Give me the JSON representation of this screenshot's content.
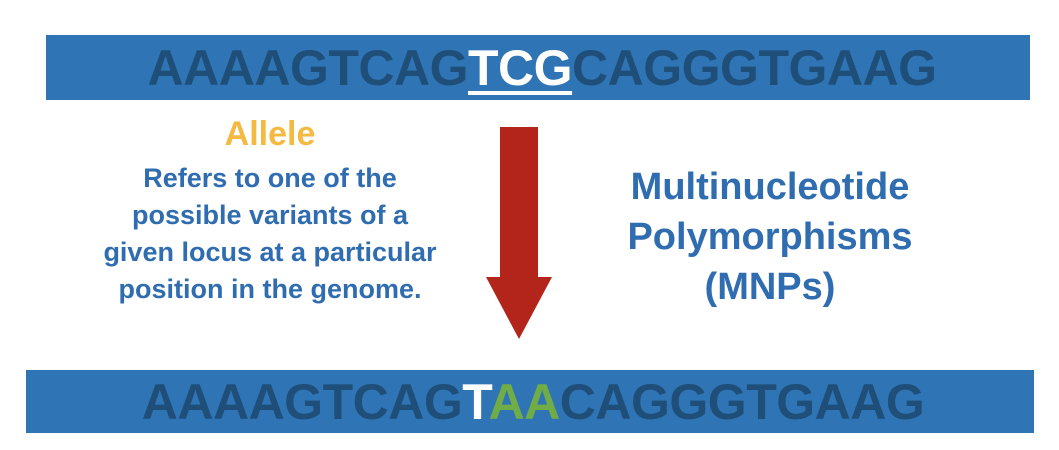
{
  "top_sequence": {
    "prefix": "AAAAGTCAG",
    "highlight": "TCG",
    "suffix": "CAGGGTGAAG"
  },
  "bottom_sequence": {
    "prefix": "AAAAGTCAG",
    "highlight_white": "T",
    "highlight_green": "AA",
    "suffix": "CAGGGTGAAG"
  },
  "allele": {
    "title": "Allele",
    "definition_lines": [
      "Refers to one of the",
      "possible variants of a",
      "given locus at a particular",
      "position in the genome."
    ]
  },
  "mnp": {
    "lines": [
      "Multinucleotide",
      "Polymorphisms",
      "(MNPs)"
    ]
  },
  "colors": {
    "bar": "#2f75b5",
    "sequence_text": "#1f4e79",
    "allele_title": "#f4b942",
    "body_text": "#2f6db0",
    "arrow": "#b3241b",
    "mutation_green": "#70ad47"
  }
}
